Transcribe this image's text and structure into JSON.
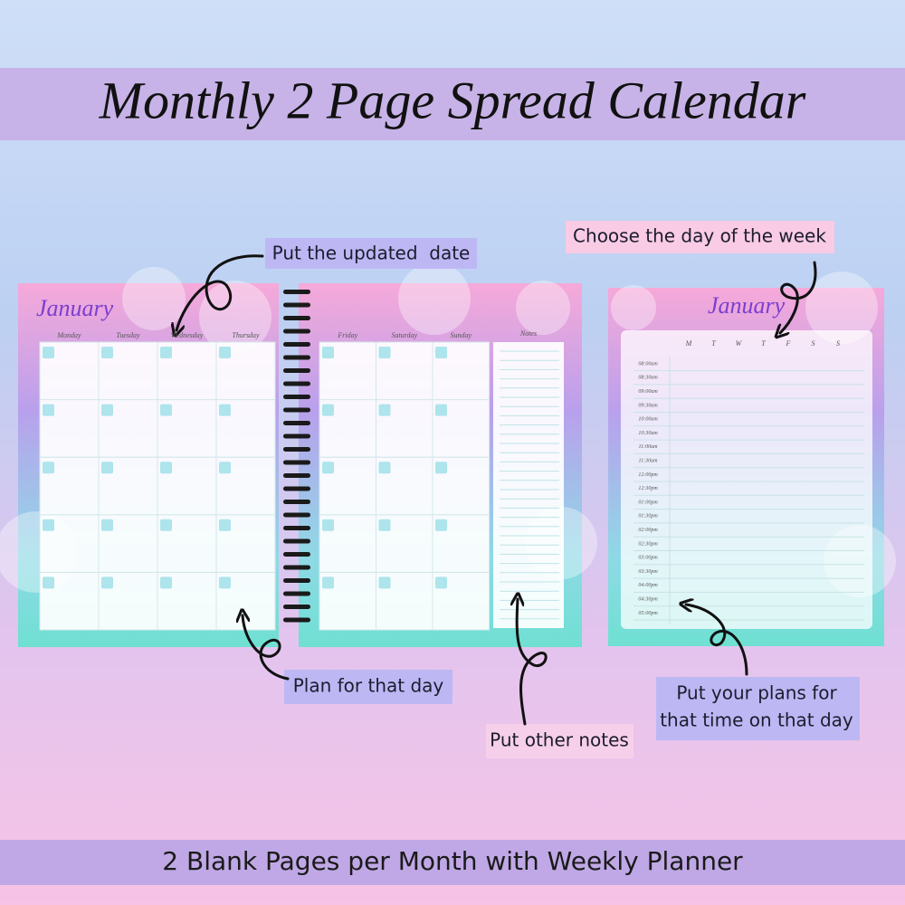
{
  "header": {
    "title": "Monthly 2 Page Spread Calendar"
  },
  "annotations": {
    "updated_date": "Put the updated  date",
    "day_of_week": "Choose the day of the week",
    "plan_day": "Plan for that day",
    "other_notes": "Put other notes",
    "time_plans": [
      "Put your plans for",
      "that time on that day"
    ]
  },
  "monthly": {
    "month": "January",
    "left_days": [
      "Monday",
      "Tuesday",
      "Wednesday",
      "Thursday"
    ],
    "right_days": [
      "Friday",
      "Saturday",
      "Sunday"
    ],
    "notes": "Notes"
  },
  "weekly": {
    "month": "January",
    "days": [
      "M",
      "T",
      "W",
      "T",
      "F",
      "S",
      "S"
    ],
    "times": [
      "08:00am",
      "08:30am",
      "09:00am",
      "09:30am",
      "10:00am",
      "10:30am",
      "11:00am",
      "11:30am",
      "12:00pm",
      "12:30pm",
      "01:00pm",
      "01:30pm",
      "02:00pm",
      "02:30pm",
      "03:00pm",
      "03:30pm",
      "04:00pm",
      "04:30pm",
      "05:00pm"
    ]
  },
  "footer": {
    "text": "2 Blank Pages per Month with Weekly Planner"
  }
}
